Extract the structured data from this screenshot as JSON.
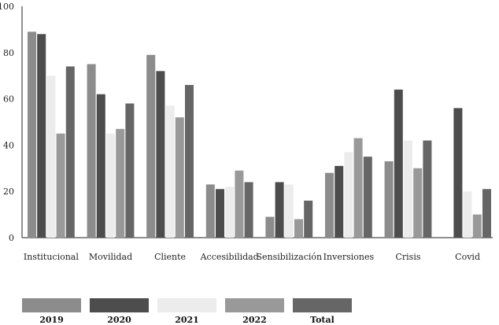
{
  "chart_data": {
    "type": "bar",
    "categories": [
      "Institucional",
      "Movilidad",
      "Cliente",
      "Accesibilidad",
      "Sensibilización",
      "Inversiones",
      "Crisis",
      "Covid"
    ],
    "series": [
      {
        "name": "2019",
        "color": "#8c8c8c",
        "values": [
          89,
          75,
          79,
          23,
          9,
          28,
          33,
          0
        ]
      },
      {
        "name": "2020",
        "color": "#4d4d4d",
        "values": [
          88,
          62,
          72,
          21,
          24,
          31,
          64,
          56
        ]
      },
      {
        "name": "2021",
        "color": "#ececec",
        "values": [
          70,
          45,
          57,
          22,
          23,
          37,
          42,
          20
        ]
      },
      {
        "name": "2022",
        "color": "#999999",
        "values": [
          45,
          47,
          52,
          29,
          8,
          43,
          30,
          10
        ]
      },
      {
        "name": "Total",
        "color": "#666666",
        "values": [
          74,
          58,
          66,
          24,
          16,
          35,
          42,
          21
        ]
      }
    ],
    "yticks": [
      "0",
      "20",
      "40",
      "60",
      "80",
      "100"
    ],
    "ylim": [
      0,
      100
    ],
    "title": "",
    "xlabel": "",
    "ylabel": "",
    "grid": false,
    "legend_position": "bottom"
  }
}
